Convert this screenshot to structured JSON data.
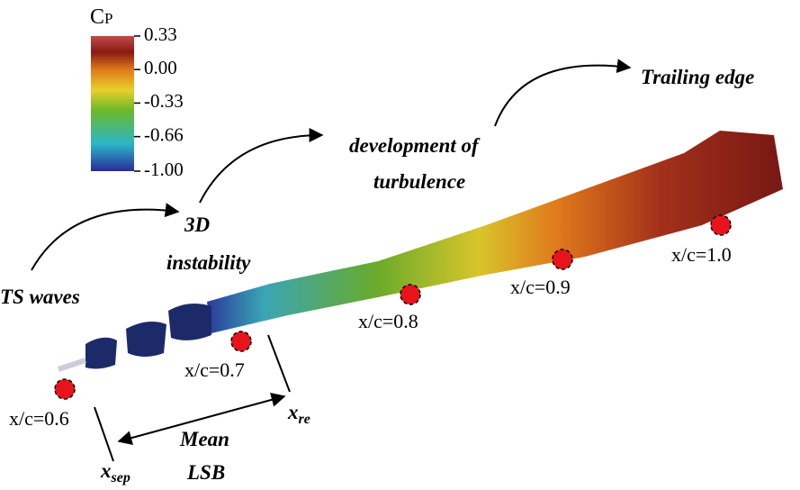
{
  "colorbar": {
    "title": "C",
    "title_sub": "P",
    "range": [
      -1.0,
      0.33
    ],
    "ticks": [
      {
        "value": 0.33,
        "label": "0.33"
      },
      {
        "value": 0.0,
        "label": "0.00"
      },
      {
        "value": -0.33,
        "label": "-0.33"
      },
      {
        "value": -0.66,
        "label": "-0.66"
      },
      {
        "value": -1.0,
        "label": "-1.00"
      }
    ]
  },
  "annotations": {
    "ts_waves": "TS waves",
    "instability": [
      "3D",
      "instability"
    ],
    "turbulence": [
      "development of",
      "turbulence"
    ],
    "trailing_edge": "Trailing edge",
    "mean_lsb": [
      "Mean",
      "LSB"
    ]
  },
  "stations": [
    "x/c=0.6",
    "x/c=0.7",
    "x/c=0.8",
    "x/c=0.9",
    "x/c=1.0"
  ],
  "markers": {
    "x_sep": {
      "main": "x",
      "sub": "sep"
    },
    "x_re": {
      "main": "x",
      "sub": "re"
    }
  }
}
